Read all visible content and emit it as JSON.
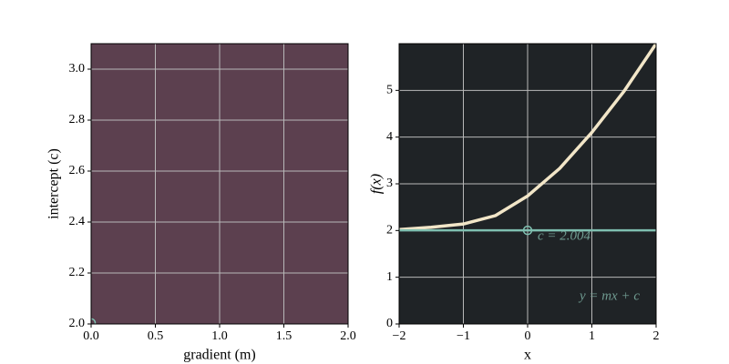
{
  "chart_data": [
    {
      "type": "scatter",
      "xlabel": "gradient (m)",
      "ylabel": "intercept (c)",
      "xlim": [
        0,
        2
      ],
      "ylim": [
        2,
        3.1
      ],
      "xticks": [
        {
          "value": 0,
          "label": "0.0"
        },
        {
          "value": 0.5,
          "label": "0.5"
        },
        {
          "value": 1,
          "label": "1.0"
        },
        {
          "value": 1.5,
          "label": "1.5"
        },
        {
          "value": 2,
          "label": "2.0"
        }
      ],
      "yticks": [
        {
          "value": 2,
          "label": "2.0"
        },
        {
          "value": 2.2,
          "label": "2.2"
        },
        {
          "value": 2.4,
          "label": "2.4"
        },
        {
          "value": 2.6,
          "label": "2.6"
        },
        {
          "value": 2.8,
          "label": "2.8"
        },
        {
          "value": 3,
          "label": "3.0"
        }
      ],
      "background": "#5c404f",
      "grid": true,
      "series": [
        {
          "color": "#7fbfb0",
          "marker": "circle",
          "x": [
            0
          ],
          "values": [
            2.004
          ]
        }
      ]
    },
    {
      "type": "line",
      "xlabel": "x",
      "ylabel": "f(x)",
      "xlim": [
        -2,
        2
      ],
      "ylim": [
        0,
        6
      ],
      "xticks": [
        {
          "value": -2,
          "label": "−2"
        },
        {
          "value": -1,
          "label": "−1"
        },
        0,
        1,
        2
      ],
      "yticks": [
        0,
        1,
        2,
        3,
        4,
        5
      ],
      "background": "#1f2326",
      "grid": true,
      "series": [
        {
          "color": "#f2e6c8",
          "x": [
            -2,
            -1.5,
            -1,
            -0.5,
            0,
            0.5,
            1,
            1.5,
            2
          ],
          "values": [
            2.02,
            2.07,
            2.14,
            2.32,
            2.74,
            3.33,
            4.1,
            4.98,
            6.0
          ]
        },
        {
          "color": "#7fbfb0",
          "x": [
            -2,
            2
          ],
          "values": [
            2.004,
            2.004
          ]
        },
        {
          "color": "#7fbfb0",
          "marker": "circle",
          "x": [
            0
          ],
          "values": [
            2.004
          ]
        }
      ],
      "annotations": [
        "c = 2.004",
        "y = mx + c"
      ]
    }
  ]
}
